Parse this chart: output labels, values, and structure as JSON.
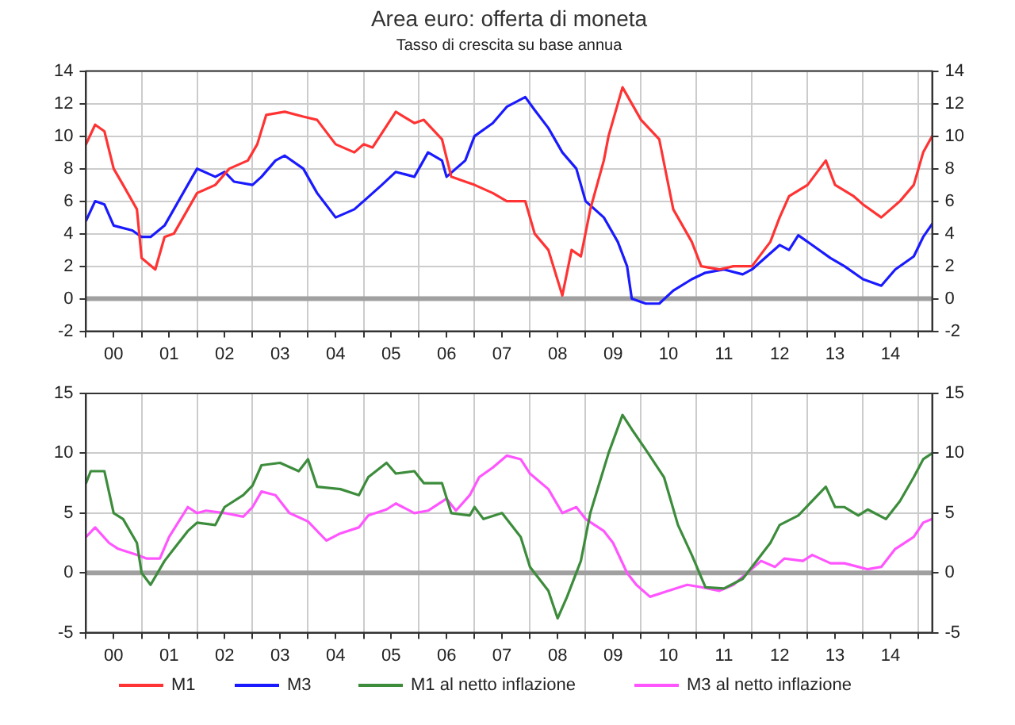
{
  "chart_data": [
    {
      "type": "line",
      "title": "Area euro: offerta di moneta",
      "subtitle": "Tasso di crescita su base annua",
      "grid": true,
      "legend": "bottom",
      "marker": "none",
      "line_style": "solid",
      "xlim": [
        "2000-01",
        "2015-04"
      ],
      "xticks": [
        {
          "value": "2000-01",
          "label": null
        },
        {
          "value": "2000-07",
          "label": "00"
        },
        {
          "value": "2001-01",
          "label": null
        },
        {
          "value": "2001-07",
          "label": "01"
        },
        {
          "value": "2002-01",
          "label": null
        },
        {
          "value": "2002-07",
          "label": "02"
        },
        {
          "value": "2003-01",
          "label": null
        },
        {
          "value": "2003-07",
          "label": "03"
        },
        {
          "value": "2004-01",
          "label": null
        },
        {
          "value": "2004-07",
          "label": "04"
        },
        {
          "value": "2005-01",
          "label": null
        },
        {
          "value": "2005-07",
          "label": "05"
        },
        {
          "value": "2006-01",
          "label": null
        },
        {
          "value": "2006-07",
          "label": "06"
        },
        {
          "value": "2007-01",
          "label": null
        },
        {
          "value": "2007-07",
          "label": "07"
        },
        {
          "value": "2008-01",
          "label": null
        },
        {
          "value": "2008-07",
          "label": "08"
        },
        {
          "value": "2009-01",
          "label": null
        },
        {
          "value": "2009-07",
          "label": "09"
        },
        {
          "value": "2010-01",
          "label": null
        },
        {
          "value": "2010-07",
          "label": "10"
        },
        {
          "value": "2011-01",
          "label": null
        },
        {
          "value": "2011-07",
          "label": "11"
        },
        {
          "value": "2012-01",
          "label": null
        },
        {
          "value": "2012-07",
          "label": "12"
        },
        {
          "value": "2013-01",
          "label": null
        },
        {
          "value": "2013-07",
          "label": "13"
        },
        {
          "value": "2014-01",
          "label": null
        },
        {
          "value": "2014-07",
          "label": "14"
        },
        {
          "value": "2015-01",
          "label": null
        }
      ],
      "ylim": [
        -2,
        14
      ],
      "yticks": [
        -2,
        0,
        2,
        4,
        6,
        8,
        10,
        12,
        14
      ],
      "y2lim": [
        -2,
        14
      ],
      "y2ticks": [
        -2,
        0,
        2,
        4,
        6,
        8,
        10,
        12,
        14
      ],
      "ref_lines": [
        {
          "axis": "y",
          "value": 0,
          "label": null,
          "color": "#a0a0a0"
        }
      ],
      "series": [
        {
          "name": "M1",
          "color": "#ff3333",
          "x": [
            "2000-01",
            "2000-03",
            "2000-05",
            "2000-07",
            "2000-09",
            "2000-12",
            "2001-01",
            "2001-04",
            "2001-06",
            "2001-08",
            "2001-11",
            "2002-01",
            "2002-05",
            "2002-08",
            "2002-12",
            "2003-02",
            "2003-04",
            "2003-08",
            "2003-12",
            "2004-03",
            "2004-07",
            "2004-11",
            "2005-01",
            "2005-03",
            "2005-08",
            "2005-12",
            "2006-02",
            "2006-06",
            "2006-08",
            "2006-11",
            "2007-01",
            "2007-05",
            "2007-08",
            "2007-12",
            "2008-02",
            "2008-05",
            "2008-08",
            "2008-10",
            "2008-12",
            "2009-02",
            "2009-05",
            "2009-06",
            "2009-09",
            "2009-11",
            "2010-01",
            "2010-05",
            "2010-08",
            "2010-12",
            "2011-02",
            "2011-06",
            "2011-09",
            "2012-01",
            "2012-05",
            "2012-07",
            "2012-09",
            "2013-01",
            "2013-05",
            "2013-07",
            "2013-11",
            "2014-01",
            "2014-05",
            "2014-09",
            "2014-12",
            "2015-02",
            "2015-04"
          ],
          "values": [
            9.5,
            10.7,
            10.3,
            8,
            7,
            5.5,
            2.5,
            1.8,
            3.8,
            4,
            5.5,
            6.5,
            7,
            8,
            8.5,
            9.5,
            11.3,
            11.5,
            11.2,
            11,
            9.5,
            9,
            9.5,
            9.3,
            11.5,
            10.8,
            11,
            9.8,
            7.5,
            7.2,
            7,
            6.5,
            6,
            6,
            4,
            3,
            0.2,
            3,
            2.6,
            5.5,
            8.5,
            10,
            13,
            12,
            11,
            9.8,
            5.5,
            3.5,
            2,
            1.8,
            2,
            2,
            3.5,
            5,
            6.3,
            7,
            8.5,
            7,
            6.3,
            5.8,
            5,
            6,
            7,
            9,
            10
          ]
        },
        {
          "name": "M3",
          "color": "#1a1aff",
          "x": [
            "2000-01",
            "2000-03",
            "2000-05",
            "2000-07",
            "2000-11",
            "2001-01",
            "2001-03",
            "2001-06",
            "2001-08",
            "2001-12",
            "2002-01",
            "2002-05",
            "2002-07",
            "2002-09",
            "2003-01",
            "2003-03",
            "2003-06",
            "2003-08",
            "2003-12",
            "2004-03",
            "2004-07",
            "2004-11",
            "2005-01",
            "2005-05",
            "2005-08",
            "2005-12",
            "2006-03",
            "2006-06",
            "2006-07",
            "2006-11",
            "2007-01",
            "2007-05",
            "2007-08",
            "2007-12",
            "2008-02",
            "2008-05",
            "2008-08",
            "2008-11",
            "2009-01",
            "2009-05",
            "2009-08",
            "2009-10",
            "2009-11",
            "2010-02",
            "2010-05",
            "2010-08",
            "2010-12",
            "2011-03",
            "2011-07",
            "2011-11",
            "2012-01",
            "2012-05",
            "2012-07",
            "2012-09",
            "2012-11",
            "2013-02",
            "2013-06",
            "2013-09",
            "2014-01",
            "2014-05",
            "2014-08",
            "2014-12",
            "2015-02",
            "2015-04"
          ],
          "values": [
            4.8,
            6,
            5.8,
            4.5,
            4.2,
            3.8,
            3.8,
            4.5,
            5.5,
            7.5,
            8,
            7.5,
            7.8,
            7.2,
            7,
            7.5,
            8.5,
            8.8,
            8,
            6.5,
            5,
            5.5,
            6,
            7,
            7.8,
            7.5,
            9,
            8.5,
            7.5,
            8.5,
            10,
            10.8,
            11.8,
            12.4,
            11.6,
            10.5,
            9,
            8,
            6,
            5,
            3.5,
            2,
            0,
            -0.3,
            -0.3,
            0.5,
            1.2,
            1.6,
            1.8,
            1.5,
            1.8,
            2.8,
            3.3,
            3,
            3.9,
            3.3,
            2.5,
            2,
            1.2,
            0.8,
            1.8,
            2.6,
            3.8,
            4.6
          ]
        }
      ]
    },
    {
      "type": "line",
      "grid": true,
      "legend": "bottom",
      "marker": "none",
      "line_style": "solid",
      "xlim": [
        "2000-01",
        "2015-04"
      ],
      "xticks": [
        {
          "value": "2000-01",
          "label": null
        },
        {
          "value": "2000-07",
          "label": "00"
        },
        {
          "value": "2001-01",
          "label": null
        },
        {
          "value": "2001-07",
          "label": "01"
        },
        {
          "value": "2002-01",
          "label": null
        },
        {
          "value": "2002-07",
          "label": "02"
        },
        {
          "value": "2003-01",
          "label": null
        },
        {
          "value": "2003-07",
          "label": "03"
        },
        {
          "value": "2004-01",
          "label": null
        },
        {
          "value": "2004-07",
          "label": "04"
        },
        {
          "value": "2005-01",
          "label": null
        },
        {
          "value": "2005-07",
          "label": "05"
        },
        {
          "value": "2006-01",
          "label": null
        },
        {
          "value": "2006-07",
          "label": "06"
        },
        {
          "value": "2007-01",
          "label": null
        },
        {
          "value": "2007-07",
          "label": "07"
        },
        {
          "value": "2008-01",
          "label": null
        },
        {
          "value": "2008-07",
          "label": "08"
        },
        {
          "value": "2009-01",
          "label": null
        },
        {
          "value": "2009-07",
          "label": "09"
        },
        {
          "value": "2010-01",
          "label": null
        },
        {
          "value": "2010-07",
          "label": "10"
        },
        {
          "value": "2011-01",
          "label": null
        },
        {
          "value": "2011-07",
          "label": "11"
        },
        {
          "value": "2012-01",
          "label": null
        },
        {
          "value": "2012-07",
          "label": "12"
        },
        {
          "value": "2013-01",
          "label": null
        },
        {
          "value": "2013-07",
          "label": "13"
        },
        {
          "value": "2014-01",
          "label": null
        },
        {
          "value": "2014-07",
          "label": "14"
        },
        {
          "value": "2015-01",
          "label": null
        }
      ],
      "ylim": [
        -5,
        15
      ],
      "yticks": [
        -5,
        0,
        5,
        10,
        15
      ],
      "y2lim": [
        -5,
        15
      ],
      "y2ticks": [
        -5,
        0,
        5,
        10,
        15
      ],
      "ref_lines": [
        {
          "axis": "y",
          "value": 0,
          "label": null,
          "color": "#a0a0a0"
        }
      ],
      "series": [
        {
          "name": "M1 al netto inflazione",
          "color": "#3c8c3c",
          "x": [
            "2000-01",
            "2000-02",
            "2000-05",
            "2000-07",
            "2000-09",
            "2000-12",
            "2001-01",
            "2001-03",
            "2001-06",
            "2001-08",
            "2001-11",
            "2002-01",
            "2002-05",
            "2002-07",
            "2002-11",
            "2003-01",
            "2003-03",
            "2003-07",
            "2003-11",
            "2004-01",
            "2004-03",
            "2004-08",
            "2004-12",
            "2005-02",
            "2005-06",
            "2005-08",
            "2005-12",
            "2006-02",
            "2006-06",
            "2006-08",
            "2006-12",
            "2007-01",
            "2007-03",
            "2007-07",
            "2007-11",
            "2008-01",
            "2008-05",
            "2008-07",
            "2008-09",
            "2008-12",
            "2009-02",
            "2009-06",
            "2009-09",
            "2009-11",
            "2010-02",
            "2010-06",
            "2010-09",
            "2010-12",
            "2011-03",
            "2011-07",
            "2011-11",
            "2012-01",
            "2012-05",
            "2012-07",
            "2012-11",
            "2013-05",
            "2013-07",
            "2013-09",
            "2013-12",
            "2014-02",
            "2014-06",
            "2014-09",
            "2014-12",
            "2015-02",
            "2015-04"
          ],
          "values": [
            7.5,
            8.5,
            8.5,
            5,
            4.5,
            2.5,
            0,
            -1,
            1,
            2,
            3.5,
            4.2,
            4,
            5.5,
            6.5,
            7.3,
            9,
            9.2,
            8.5,
            9.5,
            7.2,
            7,
            6.5,
            8,
            9.2,
            8.3,
            8.5,
            7.5,
            7.5,
            5,
            4.8,
            5.5,
            4.5,
            5,
            3,
            0.5,
            -1.5,
            -3.8,
            -2,
            1,
            5,
            10,
            13.2,
            12,
            10.3,
            8,
            4,
            1.5,
            -1.2,
            -1.3,
            -0.5,
            0.5,
            2.5,
            4,
            4.8,
            7.2,
            5.5,
            5.5,
            4.8,
            5.3,
            4.5,
            6,
            8,
            9.5,
            10
          ]
        },
        {
          "name": "M3 al netto inflazione",
          "color": "#ff55ff",
          "x": [
            "2000-01",
            "2000-03",
            "2000-06",
            "2000-08",
            "2000-12",
            "2001-02",
            "2001-05",
            "2001-07",
            "2001-11",
            "2002-01",
            "2002-03",
            "2002-07",
            "2002-11",
            "2003-01",
            "2003-03",
            "2003-06",
            "2003-09",
            "2004-01",
            "2004-05",
            "2004-08",
            "2004-12",
            "2005-02",
            "2005-06",
            "2005-08",
            "2005-12",
            "2006-03",
            "2006-07",
            "2006-09",
            "2006-12",
            "2007-02",
            "2007-05",
            "2007-08",
            "2007-11",
            "2008-01",
            "2008-05",
            "2008-08",
            "2008-11",
            "2009-01",
            "2009-05",
            "2009-07",
            "2009-10",
            "2009-12",
            "2010-03",
            "2010-07",
            "2010-11",
            "2011-02",
            "2011-06",
            "2011-09",
            "2011-12",
            "2012-03",
            "2012-06",
            "2012-08",
            "2012-12",
            "2013-02",
            "2013-06",
            "2013-09",
            "2013-12",
            "2014-02",
            "2014-05",
            "2014-08",
            "2014-12",
            "2015-02",
            "2015-04"
          ],
          "values": [
            3,
            3.8,
            2.5,
            2,
            1.5,
            1.2,
            1.2,
            3,
            5.5,
            5,
            5.2,
            5,
            4.7,
            5.5,
            6.8,
            6.5,
            5,
            4.3,
            2.7,
            3.3,
            3.8,
            4.8,
            5.3,
            5.8,
            5,
            5.2,
            6.2,
            5.2,
            6.5,
            8,
            8.8,
            9.8,
            9.5,
            8.3,
            7,
            5,
            5.5,
            4.5,
            3.5,
            2.5,
            0,
            -1,
            -2,
            -1.5,
            -1,
            -1.2,
            -1.5,
            -1,
            0,
            1,
            0.5,
            1.2,
            1,
            1.5,
            0.8,
            0.8,
            0.5,
            0.3,
            0.5,
            2,
            3,
            4.2,
            4.5
          ]
        }
      ]
    }
  ]
}
